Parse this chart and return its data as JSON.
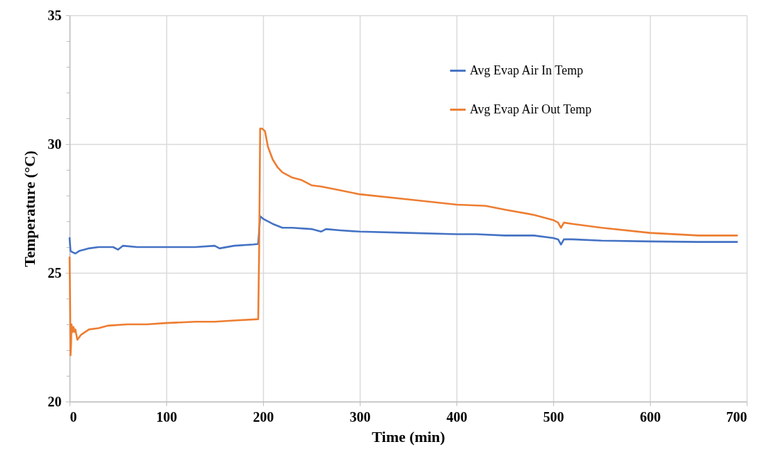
{
  "chart_data": {
    "type": "line",
    "xlabel": "Time (min)",
    "ylabel": "Temperature (°C)",
    "xlim": [
      0,
      700
    ],
    "xticks": [
      0,
      100,
      200,
      300,
      400,
      500,
      600,
      700
    ],
    "ylim": [
      20,
      35
    ],
    "yticks": [
      20,
      {
        "value": 21,
        "label": null
      },
      {
        "value": 22,
        "label": null
      },
      {
        "value": 23,
        "label": null
      },
      {
        "value": 24,
        "label": null
      },
      25,
      {
        "value": 26,
        "label": null
      },
      {
        "value": 27,
        "label": null
      },
      {
        "value": 28,
        "label": null
      },
      {
        "value": 29,
        "label": null
      },
      30,
      {
        "value": 31,
        "label": null
      },
      {
        "value": 32,
        "label": null
      },
      {
        "value": 33,
        "label": null
      },
      {
        "value": 34,
        "label": null
      },
      35
    ],
    "grid": true,
    "legend": "top right",
    "line_style": "solid",
    "marker": "none",
    "series": [
      {
        "name": "Avg Evap Air In Temp",
        "color": "#4472c4",
        "x": [
          0,
          1,
          3,
          6,
          10,
          15,
          20,
          30,
          45,
          50,
          55,
          70,
          100,
          130,
          150,
          155,
          170,
          190,
          195,
          197,
          200,
          210,
          220,
          230,
          250,
          260,
          265,
          280,
          300,
          350,
          400,
          420,
          450,
          480,
          500,
          505,
          508,
          511,
          520,
          550,
          600,
          650,
          690
        ],
        "values": [
          26.35,
          25.85,
          25.8,
          25.75,
          25.85,
          25.9,
          25.95,
          26.0,
          26.0,
          25.9,
          26.05,
          26.0,
          26.0,
          26.0,
          26.05,
          25.95,
          26.05,
          26.1,
          26.12,
          27.2,
          27.1,
          26.9,
          26.75,
          26.75,
          26.7,
          26.6,
          26.7,
          26.65,
          26.6,
          26.55,
          26.5,
          26.5,
          26.45,
          26.45,
          26.35,
          26.3,
          26.1,
          26.3,
          26.3,
          26.25,
          26.22,
          26.2,
          26.2
        ]
      },
      {
        "name": "Avg Evap Air Out Temp",
        "color": "#ed7d31",
        "x": [
          0,
          0.5,
          1,
          1.5,
          2,
          3,
          4,
          5,
          6,
          8,
          10,
          12,
          16,
          20,
          30,
          40,
          60,
          80,
          100,
          130,
          150,
          170,
          195,
          196,
          197,
          199,
          202,
          205,
          210,
          215,
          220,
          230,
          240,
          250,
          260,
          280,
          300,
          350,
          400,
          430,
          450,
          480,
          500,
          505,
          508,
          511,
          520,
          550,
          600,
          650,
          690
        ],
        "values": [
          25.6,
          24.0,
          21.8,
          22.2,
          23.0,
          22.7,
          22.9,
          22.7,
          22.8,
          22.4,
          22.5,
          22.6,
          22.7,
          22.8,
          22.85,
          22.95,
          23.0,
          23.0,
          23.05,
          23.1,
          23.1,
          23.15,
          23.2,
          26.0,
          30.6,
          30.6,
          30.5,
          29.9,
          29.4,
          29.1,
          28.9,
          28.7,
          28.6,
          28.4,
          28.35,
          28.2,
          28.05,
          27.85,
          27.65,
          27.6,
          27.45,
          27.25,
          27.05,
          26.95,
          26.75,
          26.95,
          26.9,
          26.75,
          26.55,
          26.45,
          26.45
        ]
      }
    ]
  }
}
